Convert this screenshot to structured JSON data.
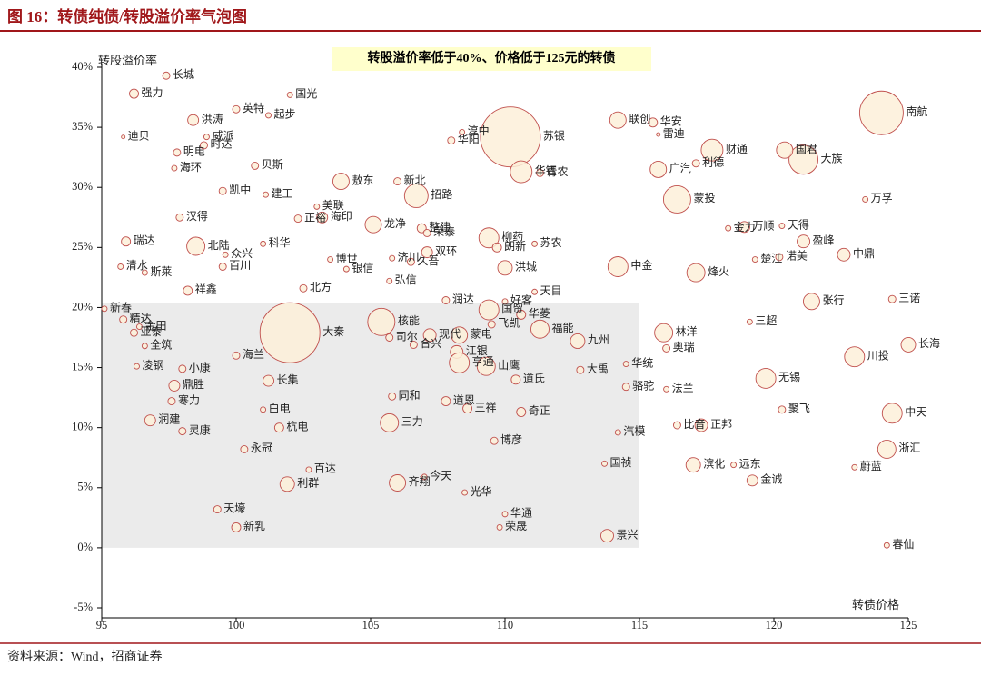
{
  "chart_data": {
    "type": "bubble",
    "title": "图 16：转债纯债/转股溢价率气泡图",
    "annotation": "转股溢价率低于40%、价格低于125元的转债",
    "y_label": "转股溢价率",
    "x_label": "转债价格",
    "source": "资料来源：Wind，招商证券",
    "color": "#fdf0d9",
    "edge_color": "#c0504d",
    "highlight_color": "#ebebeb",
    "highlight": {
      "xlim": [
        95,
        115
      ],
      "ylim": [
        0,
        20.4
      ]
    },
    "xlim": [
      95,
      125
    ],
    "ylim": [
      -5,
      40
    ],
    "xticks": [
      95,
      100,
      105,
      110,
      115,
      120,
      125
    ],
    "yticks": [
      {
        "value": -5,
        "label": "-5%"
      },
      {
        "value": 0,
        "label": "0%"
      },
      {
        "value": 5,
        "label": "5%"
      },
      {
        "value": 10,
        "label": "10%"
      },
      {
        "value": 15,
        "label": "15%"
      },
      {
        "value": 20,
        "label": "20%"
      },
      {
        "value": 25,
        "label": "25%"
      },
      {
        "value": 30,
        "label": "30%"
      },
      {
        "value": 35,
        "label": "35%"
      },
      {
        "value": 40,
        "label": "40%"
      }
    ],
    "labels": [
      "强力",
      "长城",
      "洪涛",
      "国光",
      "英特",
      "起步",
      "迪贝",
      "威派",
      "时达",
      "明电",
      "贝斯",
      "海环",
      "凯中",
      "建工",
      "汉得",
      "正裕",
      "美联",
      "海印",
      "龙净",
      "敖东",
      "新北",
      "招路",
      "整建",
      "荣泰",
      "柳药",
      "双环",
      "朗新",
      "苏农",
      "淳中",
      "华阳",
      "苏银",
      "华钰",
      "青农",
      "联创",
      "华安",
      "雷迪",
      "广汽",
      "利德",
      "财通",
      "大族",
      "国君",
      "南航",
      "万孚",
      "蒙投",
      "盈峰",
      "诺美",
      "中鼎",
      "楚江",
      "金力",
      "万顺",
      "天得",
      "中金",
      "烽火",
      "瑞达",
      "北陆",
      "众兴",
      "百川",
      "科华",
      "清水",
      "斯莱",
      "祥鑫",
      "博世",
      "银信",
      "济川",
      "久吾",
      "弘信",
      "洪城",
      "天目",
      "北方",
      "新春",
      "精达",
      "金田",
      "亚泰",
      "全筑",
      "凌钢",
      "小康",
      "鼎胜",
      "寒力",
      "海兰",
      "长集",
      "润建",
      "灵康",
      "白电",
      "杭电",
      "永冠",
      "利群",
      "百达",
      "天壕",
      "新乳",
      "大秦",
      "核能",
      "司尔",
      "合兴",
      "现代",
      "三力",
      "同和",
      "道恩",
      "齐翔",
      "今天",
      "光华",
      "华通",
      "荣晟",
      "景兴",
      "博彦",
      "三祥",
      "奇正",
      "国贸",
      "华菱",
      "好客",
      "润达",
      "蒙电",
      "飞凯",
      "福能",
      "江银",
      "亨通",
      "山鹰",
      "道氏",
      "九州",
      "大禹",
      "华统",
      "骆驼",
      "林洋",
      "奥瑞",
      "法兰",
      "三超",
      "张行",
      "三诺",
      "长海",
      "川投",
      "无锡",
      "聚飞",
      "中天",
      "汽模",
      "比音",
      "正邦",
      "国祯",
      "滨化",
      "远东",
      "金诚",
      "蔚蓝",
      "浙汇",
      "春仙"
    ],
    "x": [
      96.2,
      97.4,
      98.4,
      102.0,
      100.0,
      101.2,
      95.8,
      98.9,
      98.8,
      97.8,
      100.7,
      97.7,
      99.5,
      101.1,
      97.9,
      102.3,
      103.0,
      103.2,
      105.1,
      103.9,
      106.0,
      106.7,
      106.9,
      107.1,
      109.4,
      107.1,
      109.7,
      111.1,
      108.4,
      108.0,
      110.2,
      110.6,
      111.3,
      114.2,
      115.5,
      115.7,
      115.7,
      117.1,
      117.7,
      121.1,
      120.4,
      124.0,
      123.4,
      116.4,
      121.1,
      120.2,
      122.6,
      119.3,
      118.3,
      118.9,
      120.3,
      114.2,
      117.1,
      95.9,
      98.5,
      99.6,
      99.5,
      101.0,
      95.7,
      96.6,
      98.2,
      103.5,
      104.1,
      105.8,
      106.5,
      105.7,
      110.0,
      111.1,
      102.5,
      95.1,
      95.8,
      96.4,
      96.2,
      96.6,
      96.3,
      98.0,
      97.7,
      97.6,
      100.0,
      101.2,
      96.8,
      98.0,
      101.0,
      101.6,
      100.3,
      101.9,
      102.7,
      99.3,
      100.0,
      102.0,
      105.4,
      105.7,
      106.6,
      107.2,
      105.7,
      105.8,
      107.8,
      106.0,
      107.0,
      108.5,
      110.0,
      109.8,
      113.8,
      109.6,
      108.6,
      110.6,
      109.4,
      110.6,
      110.0,
      107.8,
      108.3,
      109.5,
      111.3,
      108.2,
      108.3,
      109.3,
      110.4,
      112.7,
      112.8,
      114.5,
      114.5,
      115.9,
      116.0,
      116.0,
      119.1,
      121.4,
      124.4,
      125.0,
      123.0,
      119.7,
      120.3,
      124.4,
      114.2,
      116.4,
      117.3,
      113.7,
      117.0,
      118.5,
      119.2,
      123.0,
      124.2,
      124.2
    ],
    "values": [
      37.8,
      39.3,
      35.6,
      37.7,
      36.5,
      36.0,
      34.2,
      34.2,
      33.5,
      32.9,
      31.8,
      31.6,
      29.7,
      29.4,
      27.5,
      27.4,
      28.4,
      27.5,
      26.9,
      30.5,
      30.5,
      29.3,
      26.6,
      26.2,
      25.8,
      24.6,
      25.0,
      25.3,
      34.6,
      33.9,
      34.2,
      31.3,
      31.2,
      35.6,
      35.4,
      34.4,
      31.5,
      32.0,
      33.1,
      32.3,
      33.1,
      36.2,
      29.0,
      29.0,
      25.5,
      24.2,
      24.4,
      24.0,
      26.6,
      26.7,
      26.8,
      23.4,
      22.9,
      25.5,
      25.1,
      24.4,
      23.4,
      25.3,
      23.4,
      22.9,
      21.4,
      24.0,
      23.2,
      24.1,
      23.8,
      22.2,
      23.3,
      21.3,
      21.6,
      19.9,
      19.0,
      18.4,
      17.9,
      16.8,
      15.1,
      14.9,
      13.5,
      12.2,
      16.0,
      13.9,
      10.6,
      9.7,
      11.5,
      10.0,
      8.2,
      5.3,
      6.5,
      3.2,
      1.7,
      17.9,
      18.8,
      17.5,
      16.9,
      17.7,
      10.4,
      12.6,
      12.2,
      5.4,
      5.9,
      4.6,
      2.8,
      1.7,
      1.0,
      8.9,
      11.6,
      11.3,
      19.8,
      19.4,
      20.5,
      20.6,
      17.7,
      18.6,
      18.2,
      16.3,
      15.4,
      15.1,
      14.0,
      17.2,
      14.8,
      15.3,
      13.4,
      17.9,
      16.6,
      13.2,
      18.8,
      20.5,
      20.7,
      16.9,
      15.9,
      14.1,
      11.5,
      11.2,
      9.6,
      10.2,
      10.2,
      7.0,
      6.9,
      6.9,
      5.6,
      6.7,
      8.2,
      0.2
    ],
    "sizes": [
      5,
      4,
      6,
      3,
      4,
      3,
      2,
      3,
      4,
      4,
      4,
      3,
      4,
      3,
      4,
      4,
      3,
      6,
      9,
      9,
      4,
      13,
      5,
      4,
      11,
      6,
      5,
      3,
      3,
      4,
      33,
      12,
      4,
      9,
      5,
      2,
      9,
      4,
      12,
      16,
      9,
      24,
      3,
      15,
      7,
      4,
      7,
      3,
      3,
      6,
      3,
      11,
      10,
      5,
      10,
      3,
      4,
      3,
      3,
      3,
      5,
      3,
      3,
      3,
      4,
      3,
      8,
      3,
      4,
      3,
      4,
      3,
      4,
      3,
      3,
      4,
      6,
      4,
      4,
      6,
      6,
      4,
      3,
      5,
      4,
      8,
      3,
      4,
      5,
      33,
      15,
      4,
      4,
      7,
      10,
      4,
      5,
      9,
      3,
      3,
      3,
      3,
      7,
      4,
      5,
      5,
      11,
      5,
      3,
      4,
      9,
      4,
      10,
      7,
      11,
      10,
      5,
      8,
      4,
      3,
      4,
      10,
      4,
      3,
      3,
      9,
      4,
      8,
      11,
      11,
      4,
      11,
      3,
      4,
      7,
      3,
      8,
      3,
      6,
      3,
      10,
      3
    ]
  }
}
